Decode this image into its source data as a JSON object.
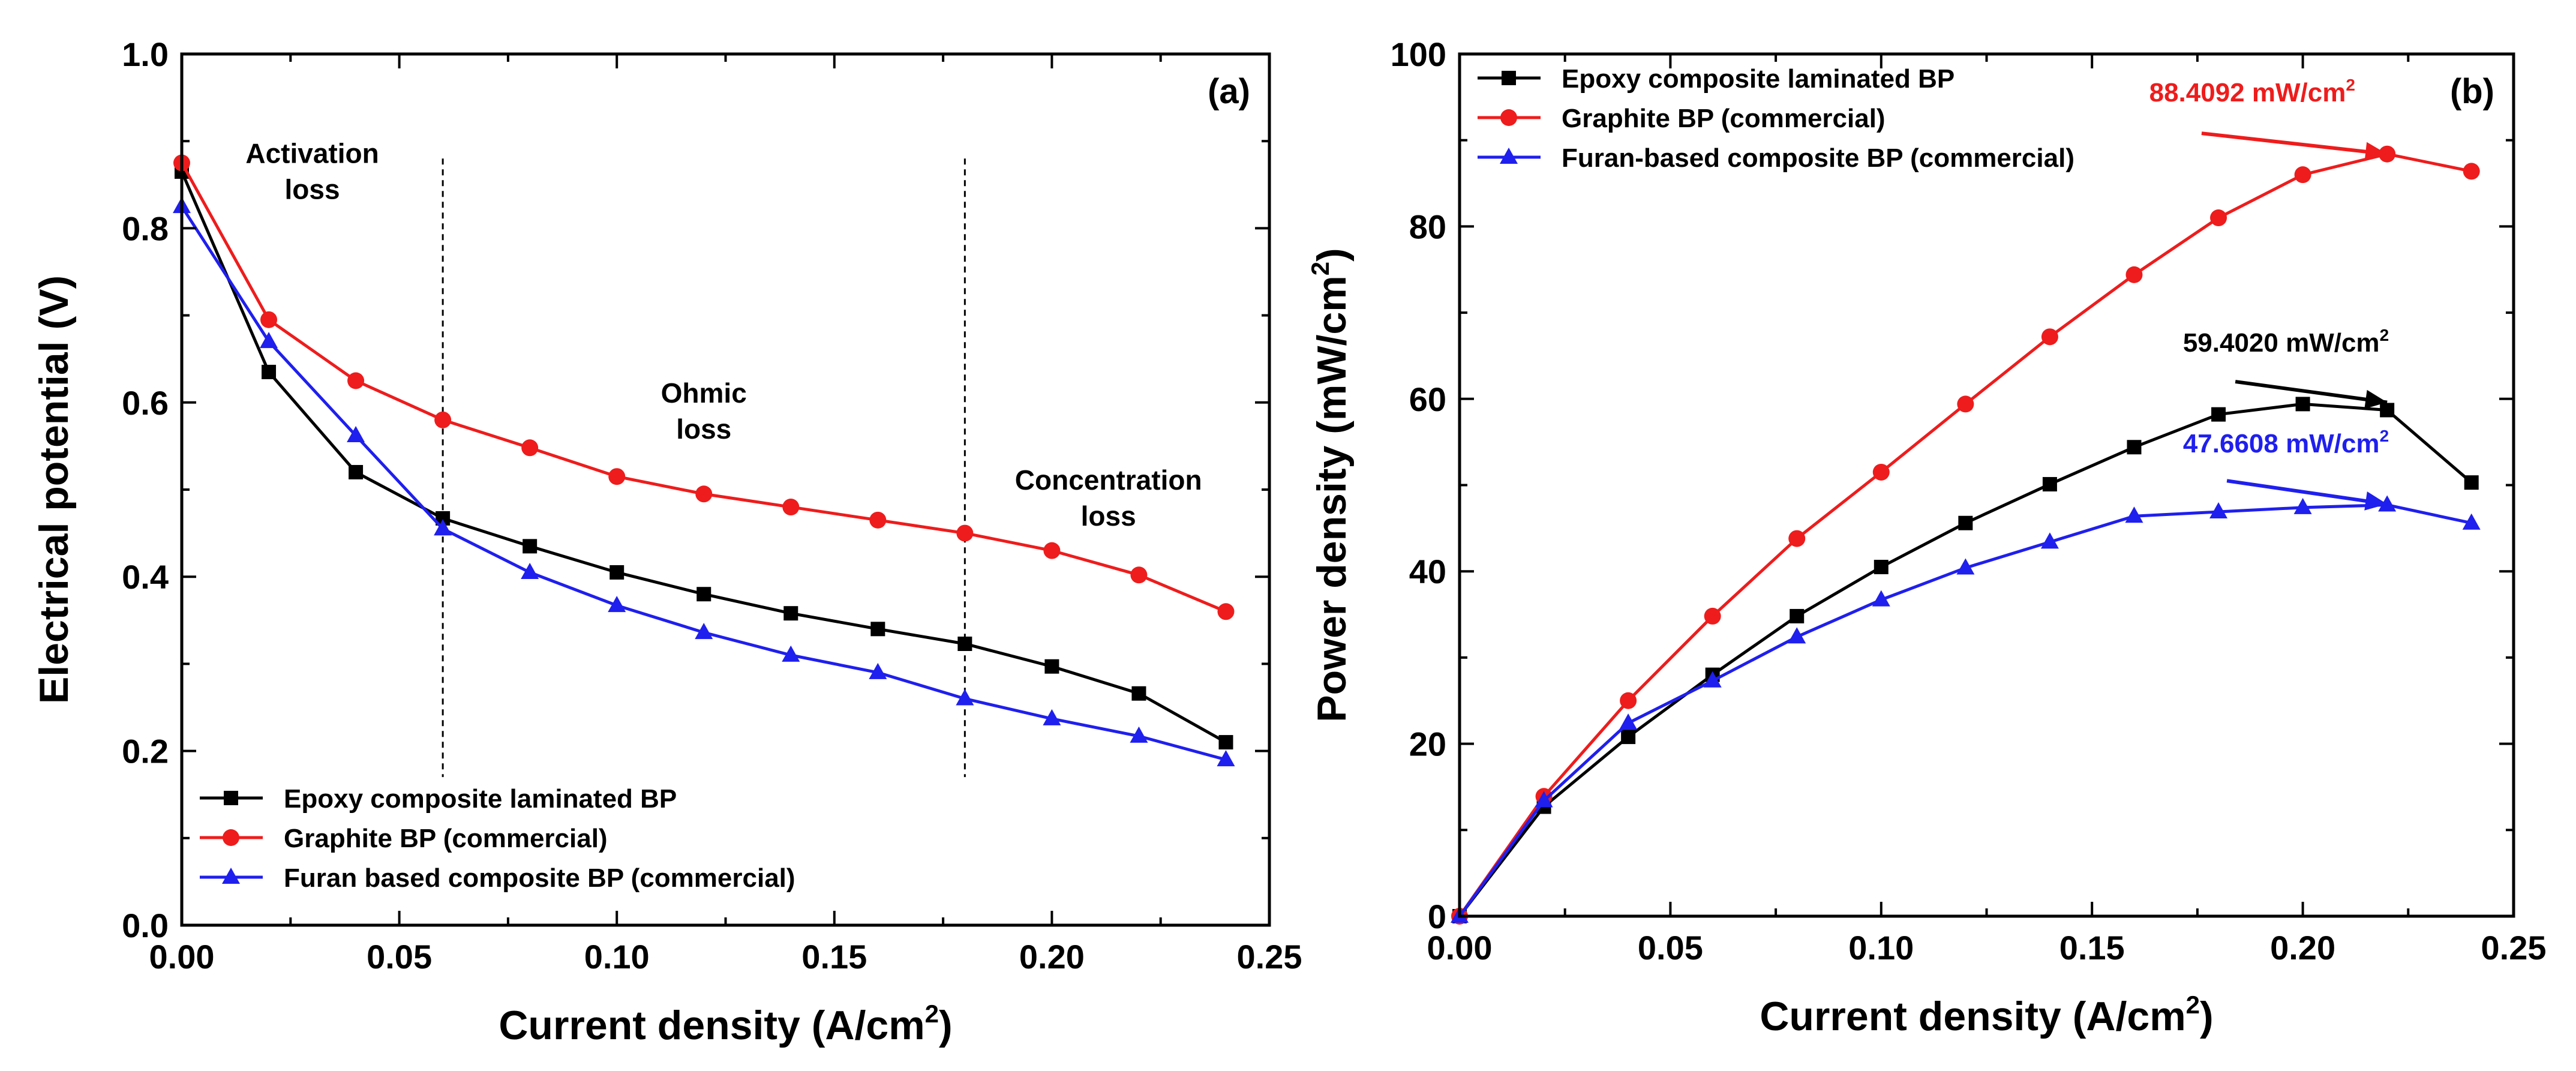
{
  "chart_data": [
    {
      "panel": "a",
      "type": "line",
      "panel_label": "(a)",
      "xlabel": "Current density (A/cm",
      "xlabel_sup": "2",
      "xlabel_end": ")",
      "ylabel": "Electrical potential (V)",
      "xlim": [
        0,
        0.25
      ],
      "ylim": [
        0,
        1.0
      ],
      "x_ticks": [
        "0.00",
        "0.05",
        "0.10",
        "0.15",
        "0.20",
        "0.25"
      ],
      "y_ticks": [
        "0.0",
        "0.2",
        "0.4",
        "0.6",
        "0.8",
        "1.0"
      ],
      "grid": false,
      "legend_position": "bottom-left",
      "region_lines_x": [
        0.06,
        0.18
      ],
      "regions": [
        {
          "line1": "Activation",
          "line2": "loss",
          "x": 0.03,
          "y": 0.875
        },
        {
          "line1": "Ohmic",
          "line2": "loss",
          "x": 0.12,
          "y": 0.6
        },
        {
          "line1": "Concentration",
          "line2": "loss",
          "x": 0.213,
          "y": 0.5
        }
      ],
      "series": [
        {
          "name": "Epoxy composite laminated BP",
          "color": "#000000",
          "marker": "square",
          "x": [
            0.0,
            0.02,
            0.04,
            0.06,
            0.08,
            0.1,
            0.12,
            0.14,
            0.16,
            0.18,
            0.2,
            0.22,
            0.24
          ],
          "y": [
            0.865,
            0.635,
            0.52,
            0.467,
            0.435,
            0.405,
            0.38,
            0.358,
            0.34,
            0.323,
            0.297,
            0.266,
            0.21
          ]
        },
        {
          "name": "Graphite BP (commercial)",
          "color": "#ee1c1c",
          "marker": "circle",
          "x": [
            0.0,
            0.02,
            0.04,
            0.06,
            0.08,
            0.1,
            0.12,
            0.14,
            0.16,
            0.18,
            0.2,
            0.22,
            0.24
          ],
          "y": [
            0.875,
            0.695,
            0.625,
            0.58,
            0.548,
            0.515,
            0.495,
            0.48,
            0.465,
            0.45,
            0.43,
            0.402,
            0.36
          ]
        },
        {
          "name": "Furan based composite BP (commercial)",
          "color": "#1f1fee",
          "marker": "triangle",
          "x": [
            0.0,
            0.02,
            0.04,
            0.06,
            0.08,
            0.1,
            0.12,
            0.14,
            0.16,
            0.18,
            0.2,
            0.22,
            0.24
          ],
          "y": [
            0.825,
            0.67,
            0.562,
            0.455,
            0.405,
            0.367,
            0.336,
            0.31,
            0.29,
            0.26,
            0.237,
            0.217,
            0.19
          ]
        }
      ]
    },
    {
      "panel": "b",
      "type": "line",
      "panel_label": "(b)",
      "xlabel": "Current density (A/cm",
      "xlabel_sup": "2",
      "xlabel_end": ")",
      "ylabel": "Power density (mW/cm",
      "ylabel_sup": "2",
      "ylabel_end": ")",
      "xlim": [
        0,
        0.25
      ],
      "ylim": [
        0,
        100
      ],
      "x_ticks": [
        "0.00",
        "0.05",
        "0.10",
        "0.15",
        "0.20",
        "0.25"
      ],
      "y_ticks": [
        "0",
        "20",
        "40",
        "60",
        "80",
        "100"
      ],
      "grid": false,
      "legend_position": "top-left",
      "series": [
        {
          "name": "Epoxy composite laminated BP",
          "color": "#000000",
          "marker": "square",
          "x": [
            0.0,
            0.02,
            0.04,
            0.06,
            0.08,
            0.1,
            0.12,
            0.14,
            0.16,
            0.18,
            0.2,
            0.22,
            0.24
          ],
          "y": [
            0,
            12.7,
            20.8,
            28.0,
            34.8,
            40.5,
            45.6,
            50.1,
            54.4,
            58.2,
            59.4,
            58.7,
            50.3
          ]
        },
        {
          "name": "Graphite BP (commercial)",
          "color": "#ee1c1c",
          "marker": "circle",
          "x": [
            0.0,
            0.02,
            0.04,
            0.06,
            0.08,
            0.1,
            0.12,
            0.14,
            0.16,
            0.18,
            0.2,
            0.22,
            0.24
          ],
          "y": [
            0,
            13.9,
            25.0,
            34.8,
            43.8,
            51.5,
            59.4,
            67.2,
            74.4,
            81.0,
            86.0,
            88.4,
            86.4
          ]
        },
        {
          "name": "Furan-based composite BP (commercial)",
          "color": "#1f1fee",
          "marker": "triangle",
          "x": [
            0.0,
            0.02,
            0.04,
            0.06,
            0.08,
            0.1,
            0.12,
            0.14,
            0.16,
            0.18,
            0.2,
            0.22,
            0.24
          ],
          "y": [
            0,
            13.4,
            22.4,
            27.3,
            32.4,
            36.7,
            40.4,
            43.4,
            46.4,
            46.9,
            47.4,
            47.7,
            45.6
          ]
        }
      ],
      "annotations": [
        {
          "text": "88.4092 mW/cm",
          "sup": "2",
          "color": "#ee1c1c",
          "arrow_from": [
            0.176,
            90.8
          ],
          "arrow_to": [
            0.22,
            88.4
          ],
          "text_at": [
            0.188,
            94.5
          ]
        },
        {
          "text": "59.4020 mW/cm",
          "sup": "2",
          "color": "#000000",
          "arrow_from": [
            0.184,
            62.0
          ],
          "arrow_to": [
            0.22,
            59.6
          ],
          "text_at": [
            0.196,
            65.5
          ]
        },
        {
          "text": "47.6608 mW/cm",
          "sup": "2",
          "color": "#1f1fee",
          "arrow_from": [
            0.182,
            50.5
          ],
          "arrow_to": [
            0.22,
            47.8
          ],
          "text_at": [
            0.196,
            53.8
          ]
        }
      ]
    }
  ]
}
